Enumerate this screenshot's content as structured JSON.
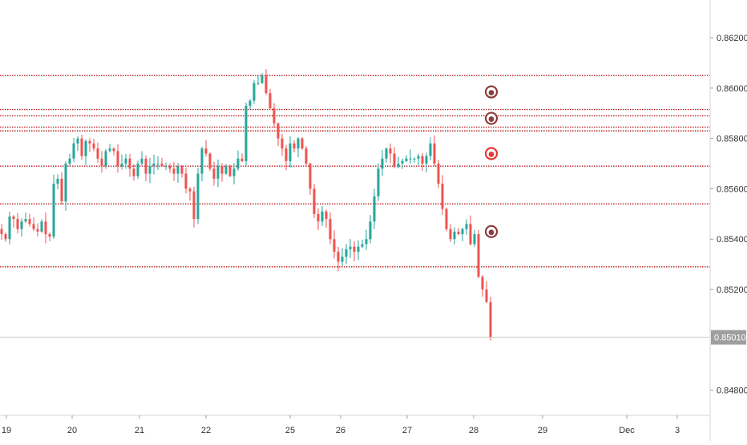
{
  "chart_data": {
    "type": "candlestick",
    "y_axis": {
      "range": [
        0.847,
        0.8635
      ],
      "ticks": [
        0.862,
        0.86,
        0.858,
        0.856,
        0.854,
        0.852,
        0.848
      ],
      "tick_labels": [
        "0.86200",
        "0.86000",
        "0.85800",
        "0.85600",
        "0.85400",
        "0.85200",
        "0.84800"
      ],
      "position": "right"
    },
    "x_axis": {
      "tick_labels": [
        "19",
        "20",
        "21",
        "22",
        "25",
        "26",
        "27",
        "28",
        "29",
        "Dec",
        "3"
      ]
    },
    "last_price": {
      "value": 0.8501,
      "label": "0.85010",
      "color": "#9e9e9e"
    },
    "horizontal_levels": [
      0.8605,
      0.85915,
      0.8589,
      0.85845,
      0.8583,
      0.8569,
      0.8554,
      0.8529
    ],
    "level_color": "#b71c1c",
    "markers": [
      {
        "value": 0.85985,
        "color": "#8d3b3b"
      },
      {
        "value": 0.8588,
        "color": "#8d3b3b"
      },
      {
        "value": 0.8574,
        "color": "#e53935"
      },
      {
        "value": 0.8543,
        "color": "#8d3b3b"
      }
    ],
    "candle_colors": {
      "up": "#26a69a",
      "down": "#ef5350"
    },
    "series_anchors": [
      [
        0.8542,
        0.854,
        0.8549,
        0.8548,
        0.8544,
        0.8547,
        0.8548,
        0.8546,
        0.8544,
        0.8543,
        0.8547,
        0.8542,
        0.8541,
        0.8562,
        0.8564,
        0.8555,
        0.857,
        0.8572,
        0.8578,
        0.858,
        0.8573,
        0.8579,
        0.8578,
        0.8576,
        0.8572,
        0.8569,
        0.8575,
        0.8576,
        0.8575,
        0.8569,
        0.857,
        0.8572,
        0.8568,
        0.8565,
        0.857,
        0.8572,
        0.8566,
        0.8569,
        0.857,
        0.857,
        0.8569,
        0.8569,
        0.8568,
        0.8566,
        0.8569,
        0.8566,
        0.856,
        0.8559,
        0.8548,
        0.8566,
        0.8576,
        0.8574,
        0.8568,
        0.8564,
        0.8569,
        0.8566,
        0.8569,
        0.8565,
        0.8568,
        0.8572,
        0.8571,
        0.8593,
        0.8595,
        0.8602,
        0.8602,
        0.8605,
        0.8598,
        0.8592,
        0.8586,
        0.858,
        0.8576,
        0.8571,
        0.8578,
        0.8576,
        0.858,
        0.8576,
        0.857,
        0.856,
        0.855,
        0.8547,
        0.8551,
        0.8548,
        0.854,
        0.8535,
        0.8531,
        0.8533,
        0.8536,
        0.8537,
        0.8535,
        0.8537,
        0.8538,
        0.854,
        0.8547,
        0.8557,
        0.8568,
        0.8572,
        0.8576,
        0.8574,
        0.8569,
        0.857,
        0.8571,
        0.8572,
        0.8572,
        0.8572,
        0.8573,
        0.857,
        0.8573,
        0.8578,
        0.857,
        0.8562,
        0.8552,
        0.8544,
        0.854,
        0.8543,
        0.8542,
        0.8544,
        0.8546,
        0.8538,
        0.8542,
        0.8525,
        0.852,
        0.8515,
        0.8501
      ]
    ]
  }
}
